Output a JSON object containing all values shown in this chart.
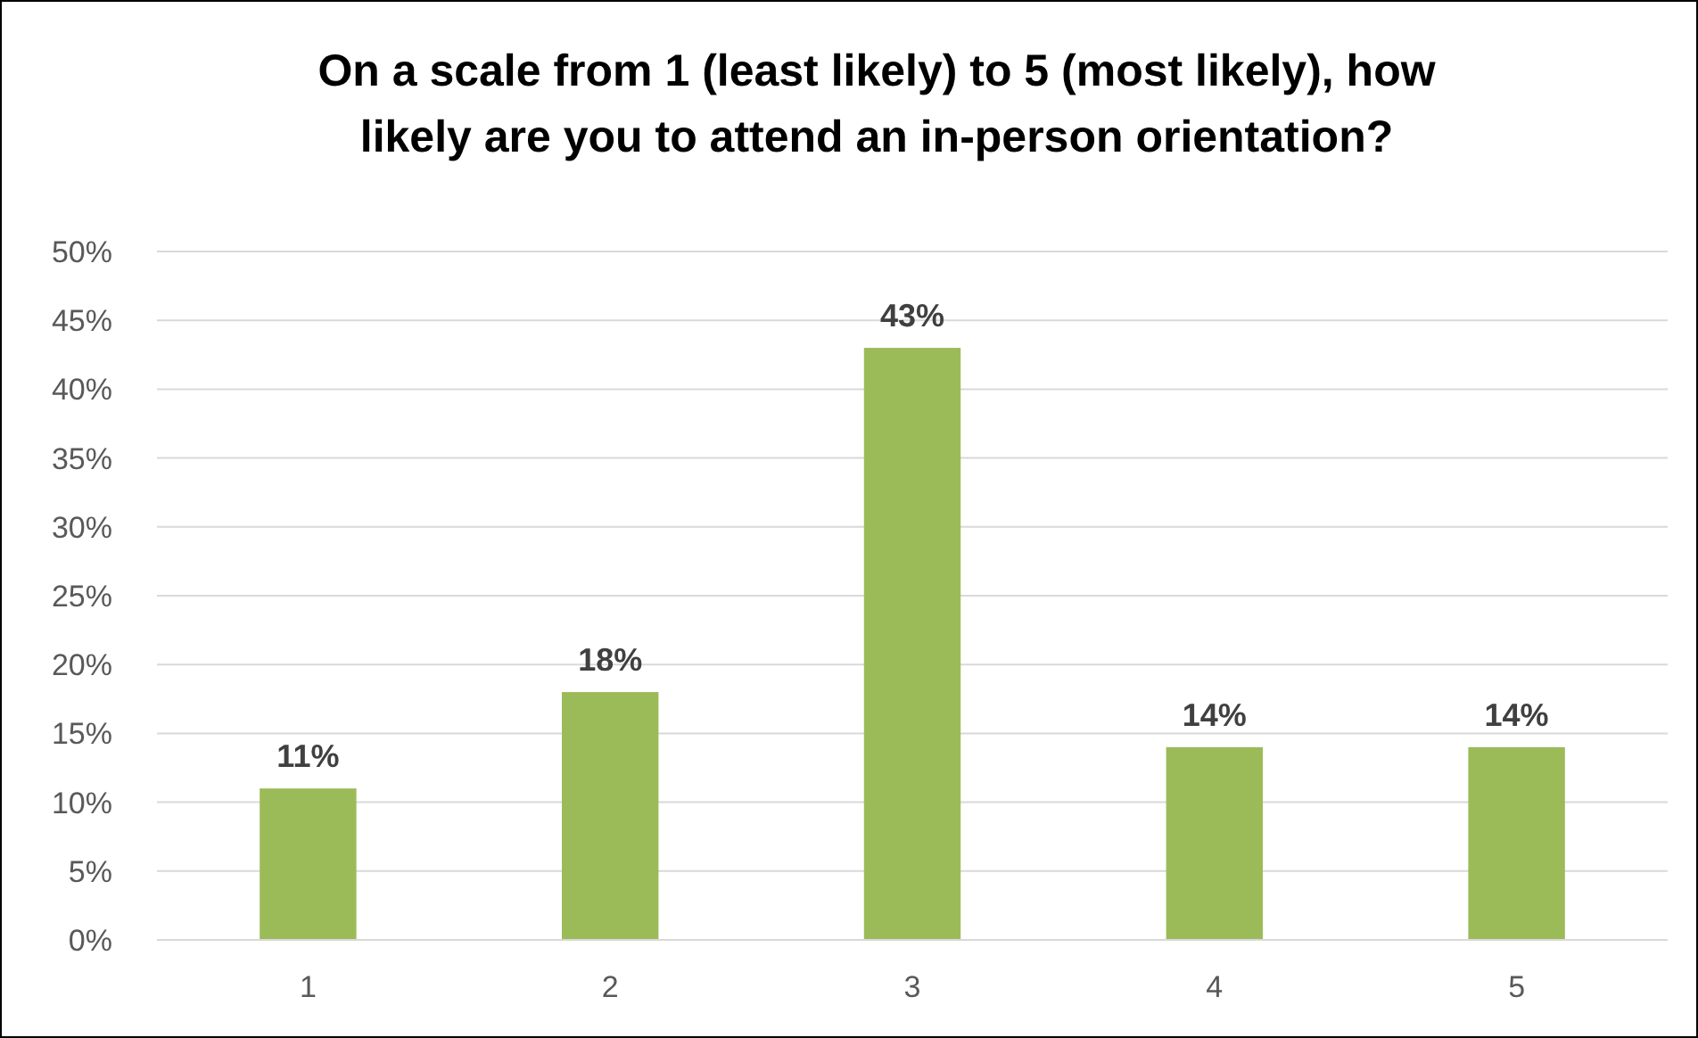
{
  "chart_data": {
    "type": "bar",
    "title": "On a scale from 1 (least likely) to 5 (most likely), how likely are you to attend an in-person orientation?",
    "categories": [
      "1",
      "2",
      "3",
      "4",
      "5"
    ],
    "values": [
      11,
      18,
      43,
      14,
      14
    ],
    "value_labels": [
      "11%",
      "18%",
      "43%",
      "14%",
      "14%"
    ],
    "color": "#9bbb59",
    "ylim": [
      0,
      50
    ],
    "yticks": [
      {
        "value": 0,
        "label": "0%"
      },
      {
        "value": 5,
        "label": "5%"
      },
      {
        "value": 10,
        "label": "10%"
      },
      {
        "value": 15,
        "label": "15%"
      },
      {
        "value": 20,
        "label": "20%"
      },
      {
        "value": 25,
        "label": "25%"
      },
      {
        "value": 30,
        "label": "30%"
      },
      {
        "value": 35,
        "label": "35%"
      },
      {
        "value": 40,
        "label": "40%"
      },
      {
        "value": 45,
        "label": "45%"
      },
      {
        "value": 50,
        "label": "50%"
      }
    ],
    "grid": "y"
  }
}
